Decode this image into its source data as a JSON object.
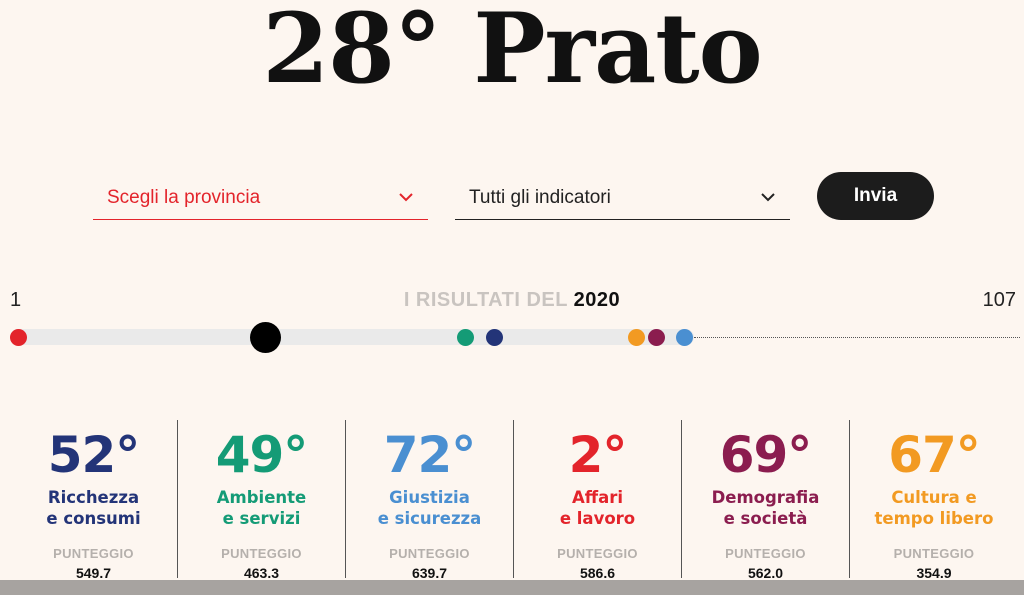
{
  "title": "28° Prato",
  "filters": {
    "province_label": "Scegli la provincia",
    "indicator_label": "Tutti gli indicatori",
    "submit_label": "Invia"
  },
  "ranking": {
    "min": "1",
    "max": "107",
    "results_label": "I RISULTATI DEL",
    "year": "2020",
    "overall_position": 28,
    "total": 107
  },
  "categories": [
    {
      "rank": "52°",
      "line1": "Ricchezza",
      "line2": "e consumi",
      "score_label": "PUNTEGGIO",
      "score": "549.7",
      "color": "#233478"
    },
    {
      "rank": "49°",
      "line1": "Ambiente",
      "line2": "e servizi",
      "score_label": "PUNTEGGIO",
      "score": "463.3",
      "color": "#149b76"
    },
    {
      "rank": "72°",
      "line1": "Giustizia",
      "line2": "e sicurezza",
      "score_label": "PUNTEGGIO",
      "score": "639.7",
      "color": "#4a8fd1"
    },
    {
      "rank": "2°",
      "line1": "Affari",
      "line2": "e lavoro",
      "score_label": "PUNTEGGIO",
      "score": "586.6",
      "color": "#e3242b"
    },
    {
      "rank": "69°",
      "line1": "Demografia",
      "line2": "e società",
      "score_label": "PUNTEGGIO",
      "score": "562.0",
      "color": "#8b1d4f"
    },
    {
      "rank": "67°",
      "line1": "Cultura e",
      "line2": "tempo libero",
      "score_label": "PUNTEGGIO",
      "score": "354.9",
      "color": "#f29a22"
    }
  ],
  "track_markers": [
    {
      "category": "Affari e lavoro",
      "color": "#e3242b"
    },
    {
      "category": "overall",
      "color": "#000000"
    },
    {
      "category": "Ambiente e servizi",
      "color": "#149b76"
    },
    {
      "category": "Ricchezza e consumi",
      "color": "#233478"
    },
    {
      "category": "Cultura e tempo libero",
      "color": "#f29a22"
    },
    {
      "category": "Demografia e società",
      "color": "#8b1d4f"
    },
    {
      "category": "Giustizia e sicurezza",
      "color": "#4a8fd1"
    }
  ]
}
